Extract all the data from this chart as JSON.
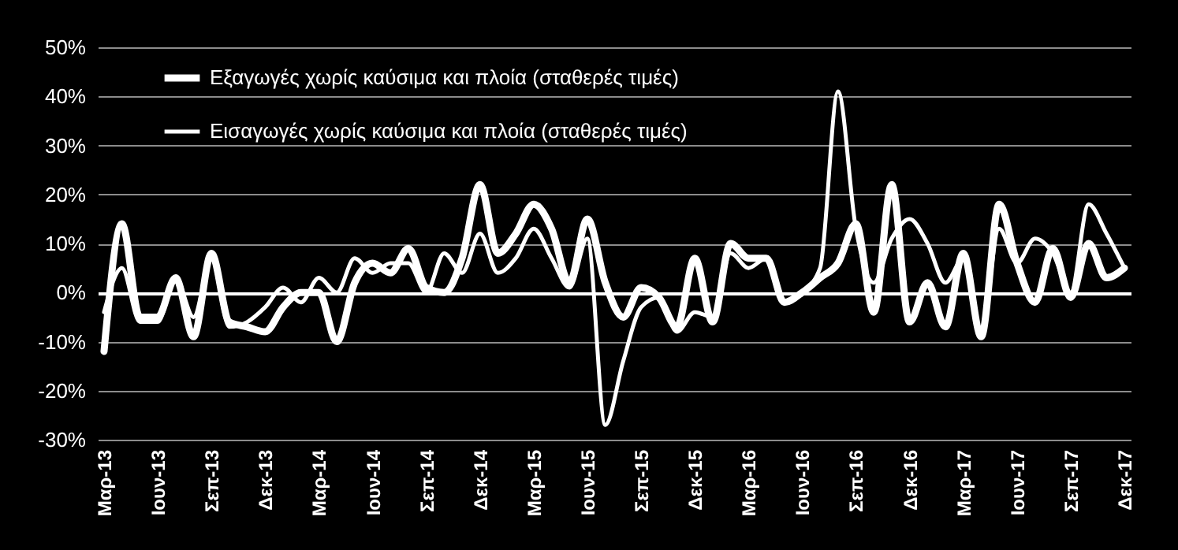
{
  "chart_data": {
    "type": "line",
    "categories": [
      "Μαρ-13",
      null,
      null,
      "Ιουν-13",
      null,
      null,
      "Σεπ-13",
      null,
      null,
      "Δεκ-13",
      null,
      null,
      "Μαρ-14",
      null,
      null,
      "Ιουν-14",
      null,
      null,
      "Σεπ-14",
      null,
      null,
      "Δεκ-14",
      null,
      null,
      "Μαρ-15",
      null,
      null,
      "Ιουν-15",
      null,
      null,
      "Σεπ-15",
      null,
      null,
      "Δεκ-15",
      null,
      null,
      "Μαρ-16",
      null,
      null,
      "Ιουν-16",
      null,
      null,
      "Σεπ-16",
      null,
      null,
      "Δεκ-16",
      null,
      null,
      "Μαρ-17",
      null,
      null,
      "Ιουν-17",
      null,
      null,
      "Σεπ-17",
      null,
      null,
      "Δεκ-17"
    ],
    "series": [
      {
        "name": "Εξαγωγές χωρίς καύσιμα και πλοία (σταθερές τιμές)",
        "color": "#ffffff",
        "values": [
          -12,
          14,
          -5,
          -5,
          3,
          -9,
          8,
          -6,
          -7,
          -8,
          -3,
          0,
          0,
          -10,
          2,
          6,
          4,
          9,
          1,
          0,
          7,
          22,
          8,
          12,
          18,
          13,
          2,
          15,
          2,
          -5,
          1,
          -1,
          -7,
          7,
          -6,
          10,
          7,
          7,
          -2,
          0,
          3,
          6,
          14,
          -4,
          22,
          -6,
          2,
          -7,
          8,
          -9,
          18,
          6,
          -2,
          9,
          -1,
          10,
          3,
          5
        ]
      },
      {
        "name": "Εισαγωγές χωρίς καύσιμα και πλοία (σταθερές τιμές)",
        "color": "#ffffff",
        "values": [
          -4,
          5,
          -6,
          -6,
          3,
          -5,
          7,
          -7,
          -6,
          -3,
          1,
          -2,
          3,
          0,
          7,
          4,
          6,
          6,
          0,
          8,
          4,
          12,
          4,
          7,
          13,
          7,
          1,
          11,
          -27,
          -14,
          -3,
          -1,
          -8,
          -4,
          -5,
          8,
          5,
          7,
          -2,
          0,
          5,
          41,
          13,
          2,
          11,
          15,
          10,
          2,
          7,
          -8,
          13,
          6,
          11,
          8,
          0,
          18,
          12,
          5
        ]
      }
    ],
    "ylim": [
      -30,
      50
    ],
    "yticks": [
      {
        "value": -30,
        "label": "-30%"
      },
      {
        "value": -20,
        "label": "-20%"
      },
      {
        "value": -10,
        "label": "-10%"
      },
      {
        "value": 0,
        "label": "0%"
      },
      {
        "value": 10,
        "label": "10%"
      },
      {
        "value": 20,
        "label": "20%"
      },
      {
        "value": 30,
        "label": "30%"
      },
      {
        "value": 40,
        "label": "40%"
      },
      {
        "value": 50,
        "label": "50%"
      }
    ],
    "grid": "y",
    "legend": "top left"
  }
}
